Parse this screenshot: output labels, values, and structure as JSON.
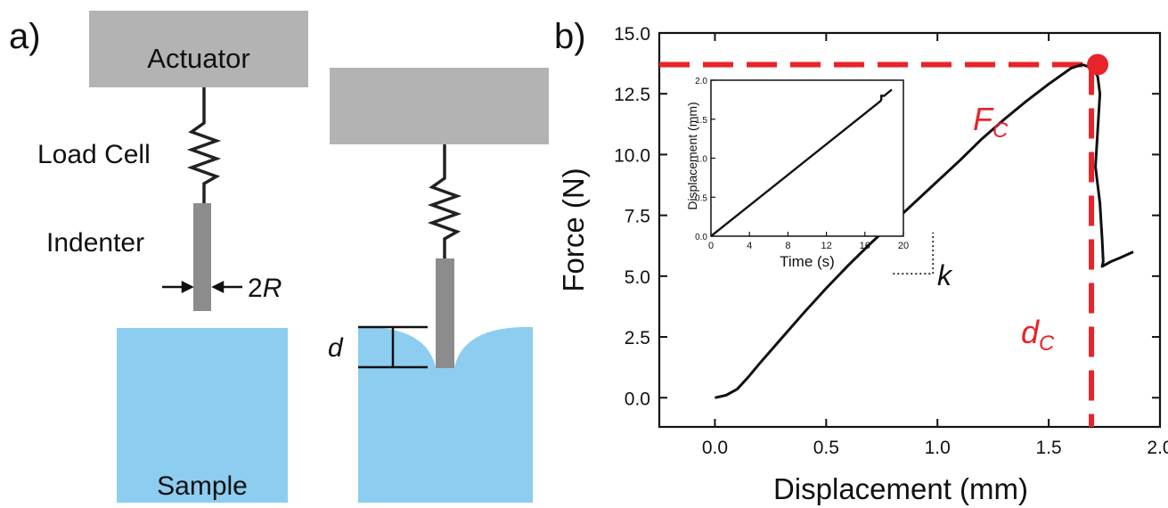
{
  "panel_a": {
    "label": "a)",
    "actuator": "Actuator",
    "load_cell": "Load Cell",
    "indenter": "Indenter",
    "radius_prefix": "2",
    "radius_var": "R",
    "sample": "Sample",
    "depth_var": "d",
    "colors": {
      "block": "#b3b3b3",
      "indenter": "#8c8c8c",
      "sample": "#8ccdf0"
    }
  },
  "chart_data": {
    "panel_label": "b)",
    "type": "line",
    "xlabel": "Displacement (mm)",
    "ylabel": "Force (N)",
    "xlim": [
      -0.25,
      2.0
    ],
    "ylim": [
      -1.2,
      15.0
    ],
    "xticks": [
      0.0,
      0.5,
      1.0,
      1.5,
      2.0
    ],
    "xtick_labels": [
      "0.0",
      "0.5",
      "1.0",
      "1.5",
      "2.0"
    ],
    "yticks": [
      0.0,
      2.5,
      5.0,
      7.5,
      10.0,
      12.5,
      15.0
    ],
    "ytick_labels": [
      "0.0",
      "2.5",
      "5.0",
      "7.5",
      "10.0",
      "12.5",
      "15.0"
    ],
    "series": [
      {
        "color": "#111111",
        "x": [
          0.0,
          0.05,
          0.1,
          0.15,
          0.2,
          0.3,
          0.4,
          0.5,
          0.6,
          0.7,
          0.8,
          0.9,
          1.0,
          1.1,
          1.2,
          1.3,
          1.4,
          1.5,
          1.6,
          1.65,
          1.7,
          1.72,
          1.73,
          1.72,
          1.71,
          1.73,
          1.74,
          1.745,
          1.74,
          1.78,
          1.82,
          1.88
        ],
        "y": [
          0.0,
          0.1,
          0.35,
          0.85,
          1.4,
          2.45,
          3.5,
          4.5,
          5.45,
          6.35,
          7.2,
          8.05,
          8.9,
          9.75,
          10.65,
          11.45,
          12.2,
          12.9,
          13.55,
          13.7,
          13.55,
          13.2,
          12.5,
          11.0,
          9.5,
          8.0,
          6.5,
          5.6,
          5.4,
          5.6,
          5.75,
          6.0
        ]
      }
    ],
    "critical_point": {
      "x": 1.72,
      "y": 13.7,
      "color": "#e8232a"
    },
    "annotations": {
      "Fc_main": "F",
      "Fc_sub": "C",
      "dc_main": "d",
      "dc_sub": "C",
      "k": "k"
    },
    "slope_triangle": {
      "x0": 0.8,
      "x1": 0.98,
      "y0": 5.1,
      "y1": 6.8
    },
    "inset": {
      "type": "line",
      "xlabel": "Time (s)",
      "ylabel": "Displacement (mm)",
      "xlim": [
        0,
        20
      ],
      "ylim": [
        0,
        2.0
      ],
      "xticks": [
        0,
        4,
        8,
        12,
        16,
        20
      ],
      "xtick_labels": [
        "0",
        "4",
        "8",
        "12",
        "16",
        "20"
      ],
      "yticks": [
        0.0,
        0.5,
        1.0,
        1.5,
        2.0
      ],
      "ytick_labels": [
        "0.0",
        "0.5",
        "1.0",
        "1.5",
        "2.0"
      ],
      "x": [
        0,
        17.6,
        17.7,
        17.7,
        18.0,
        18.8
      ],
      "y": [
        0.0,
        1.73,
        1.75,
        1.8,
        1.8,
        1.88
      ]
    }
  }
}
